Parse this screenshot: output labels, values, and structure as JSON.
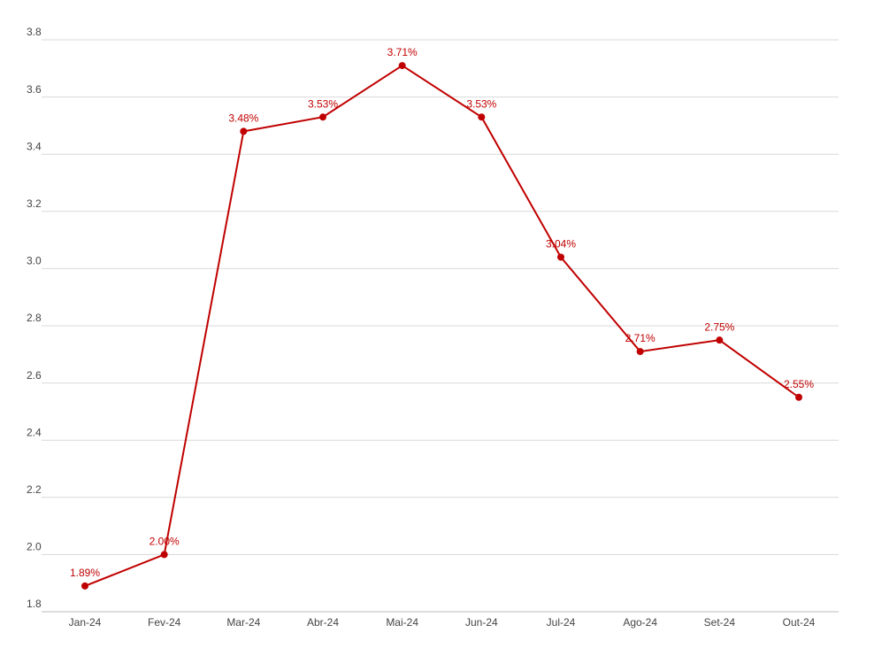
{
  "chart_data": {
    "type": "line",
    "categories": [
      "Jan-24",
      "Fev-24",
      "Mar-24",
      "Abr-24",
      "Mai-24",
      "Jun-24",
      "Jul-24",
      "Ago-24",
      "Set-24",
      "Out-24"
    ],
    "values": [
      1.89,
      2.0,
      3.48,
      3.53,
      3.71,
      3.53,
      3.04,
      2.71,
      2.75,
      2.55
    ],
    "value_labels": [
      "1.89%",
      "2.00%",
      "3.48%",
      "3.53%",
      "3.71%",
      "3.53%",
      "3.04%",
      "2.71%",
      "2.75%",
      "2.55%"
    ],
    "color": "#c00000",
    "ylim": [
      1.8,
      3.8
    ],
    "yticks": [
      1.8,
      {
        "value": 2,
        "label": "2.0"
      },
      2.2,
      2.4,
      2.6,
      2.8,
      {
        "value": 3,
        "label": "3.0"
      },
      3.2,
      3.4,
      3.6,
      3.8
    ],
    "grid": true
  }
}
